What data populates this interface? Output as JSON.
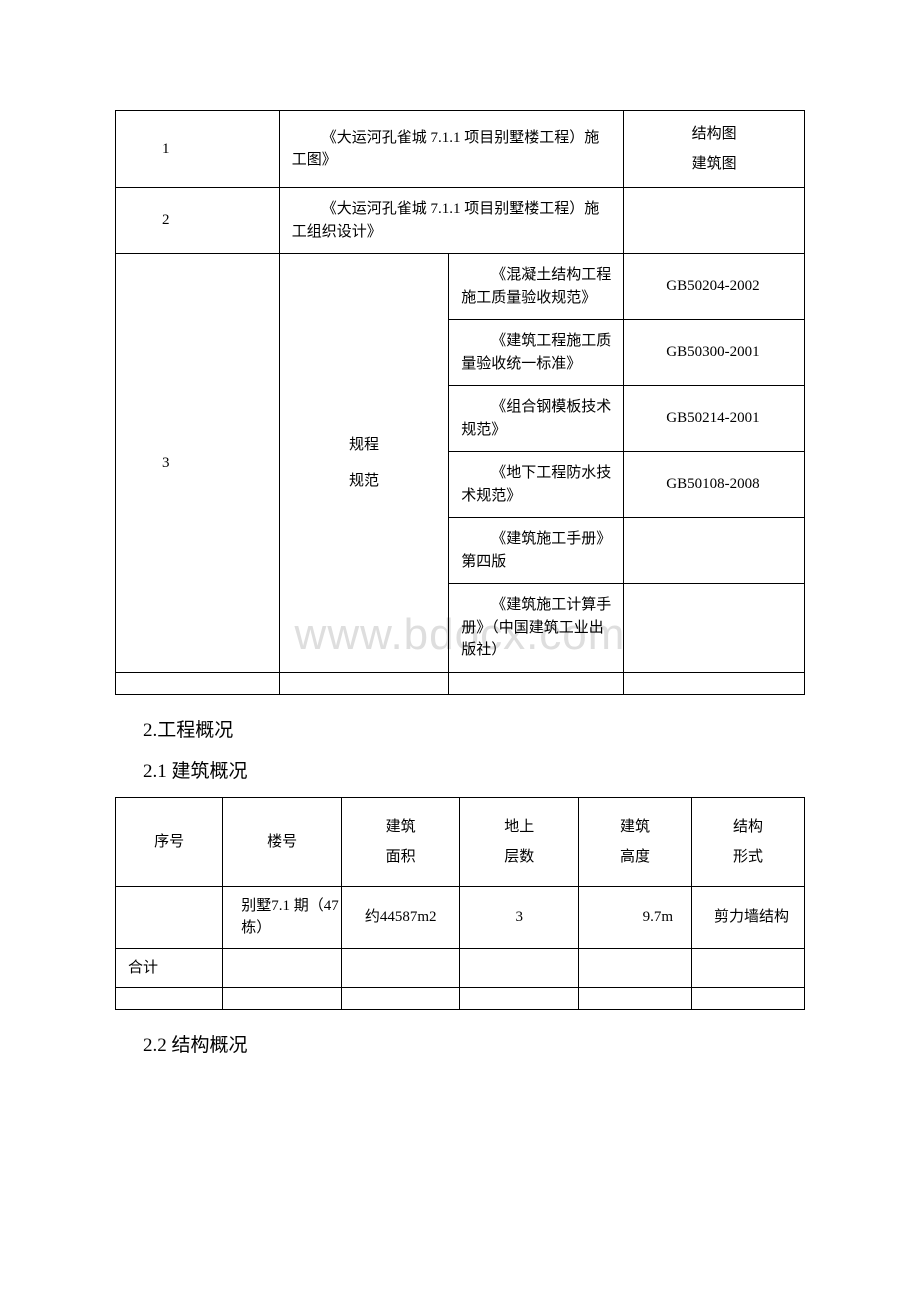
{
  "watermark": "www.bdocx.com",
  "table1": {
    "row1": {
      "num": "1",
      "desc": "《大运河孔雀城 7.1.1 项目别墅楼工程）施工图》",
      "note": "结构图\n建筑图"
    },
    "row2": {
      "num": "2",
      "desc": "《大运河孔雀城 7.1.1 项目别墅楼工程）施工组织设计》",
      "note": ""
    },
    "row3": {
      "num": "3",
      "cat": "规程\n规范",
      "items": [
        {
          "name": "《混凝土结构工程施工质量验收规范》",
          "code": "GB50204-2002"
        },
        {
          "name": "《建筑工程施工质量验收统一标准》",
          "code": "GB50300-2001"
        },
        {
          "name": "《组合钢模板技术规范》",
          "code": "GB50214-2001"
        },
        {
          "name": "《地下工程防水技术规范》",
          "code": "GB50108-2008"
        },
        {
          "name": "《建筑施工手册》第四版",
          "code": ""
        },
        {
          "name": "《建筑施工计算手册》（中国建筑工业出版社）",
          "code": ""
        }
      ]
    }
  },
  "headings": {
    "h1": "2.工程概况",
    "h2": "2.1 建筑概况",
    "h3": "2.2 结构概况"
  },
  "table2": {
    "headers": [
      "序号",
      "楼号",
      "建筑\n面积",
      "地上\n层数",
      "建筑\n高度",
      "结构\n形式"
    ],
    "row1": {
      "c1": "",
      "c2": "别墅7.1 期（47栋）",
      "c3": "约44587m2",
      "c4": "3",
      "c5": "9.7m",
      "c6": "剪力墙结构"
    },
    "row2": {
      "c1": "合计",
      "c2": "",
      "c3": "",
      "c4": "",
      "c5": "",
      "c6": ""
    }
  }
}
